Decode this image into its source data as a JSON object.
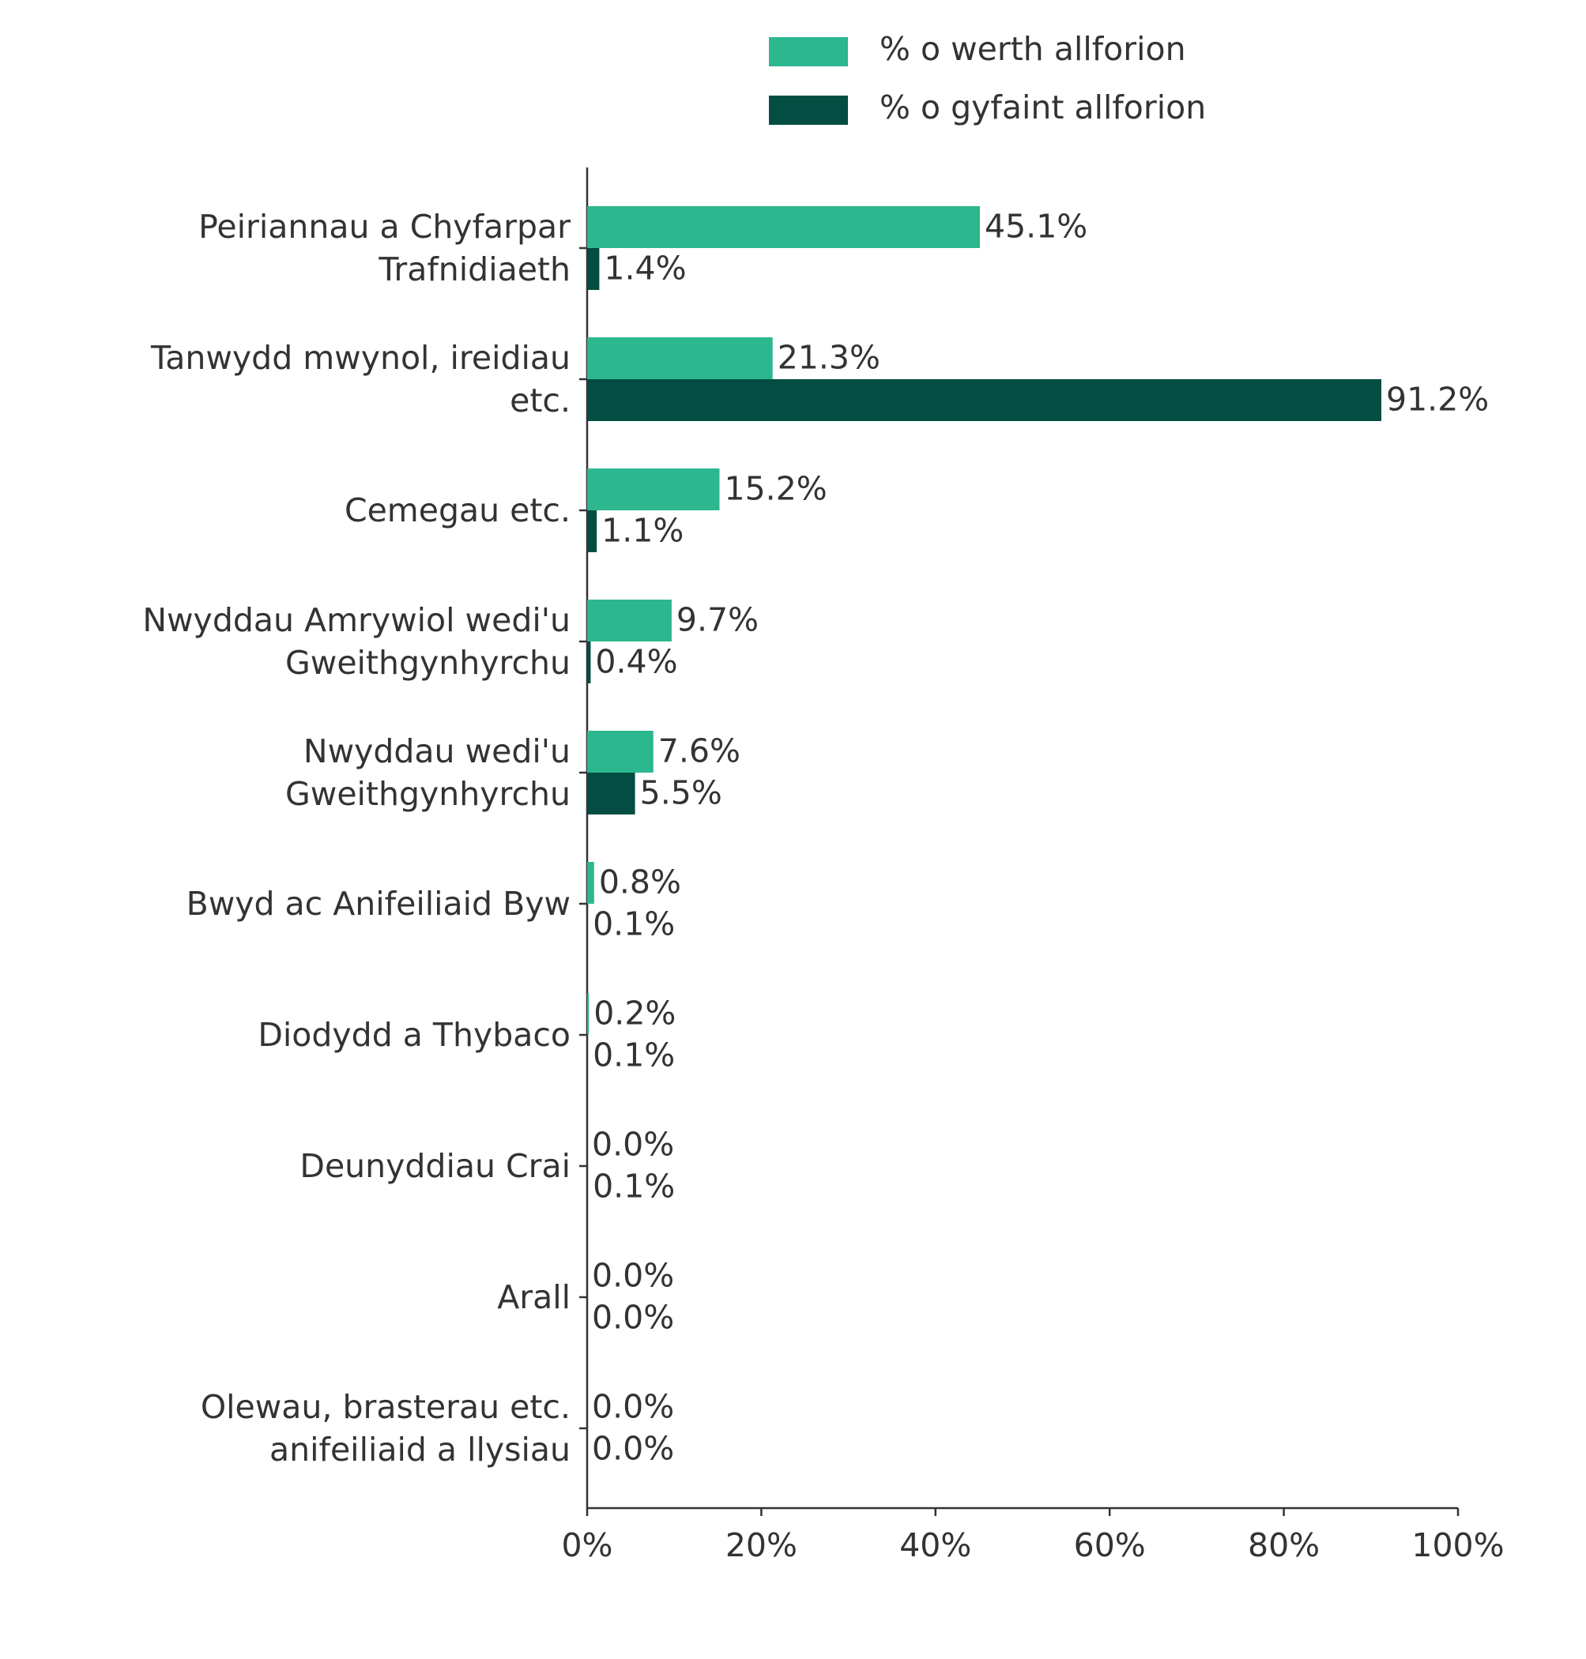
{
  "chart_data": {
    "type": "bar",
    "orientation": "horizontal",
    "categories": [
      "Peiriannau a Chyfarpar\nTrafnidiaeth",
      "Tanwydd mwynol, ireidiau\netc.",
      "Cemegau etc.",
      "Nwyddau Amrywiol wedi'u\nGweithgynhyrchu",
      "Nwyddau wedi'u\nGweithgynhyrchu",
      "Bwyd ac Anifeiliaid Byw",
      "Diodydd a Thybaco",
      "Deunyddiau Crai",
      "Arall",
      "Olewau, brasterau etc.\nanifeiliaid a llysiau"
    ],
    "series": [
      {
        "name": "% o werth allforion",
        "color": "#2db78f",
        "values": [
          45.1,
          21.3,
          15.2,
          9.7,
          7.6,
          0.8,
          0.2,
          0.0,
          0.0,
          0.0
        ],
        "value_labels": [
          "45.1%",
          "21.3%",
          "15.2%",
          "9.7%",
          "7.6%",
          "0.8%",
          "0.2%",
          "0.0%",
          "0.0%",
          "0.0%"
        ]
      },
      {
        "name": "% o gyfaint allforion",
        "color": "#034d42",
        "values": [
          1.4,
          91.2,
          1.1,
          0.4,
          5.5,
          0.1,
          0.1,
          0.1,
          0.0,
          0.0
        ],
        "value_labels": [
          "1.4%",
          "91.2%",
          "1.1%",
          "0.4%",
          "5.5%",
          "0.1%",
          "0.1%",
          "0.1%",
          "0.0%",
          "0.0%"
        ]
      }
    ],
    "xlim": [
      0,
      100
    ],
    "xticks": [
      {
        "value": 0,
        "label": "0%"
      },
      {
        "value": 20,
        "label": "20%"
      },
      {
        "value": 40,
        "label": "40%"
      },
      {
        "value": 60,
        "label": "60%"
      },
      {
        "value": 80,
        "label": "80%"
      },
      {
        "value": 100,
        "label": "100%"
      }
    ],
    "grid": false
  }
}
